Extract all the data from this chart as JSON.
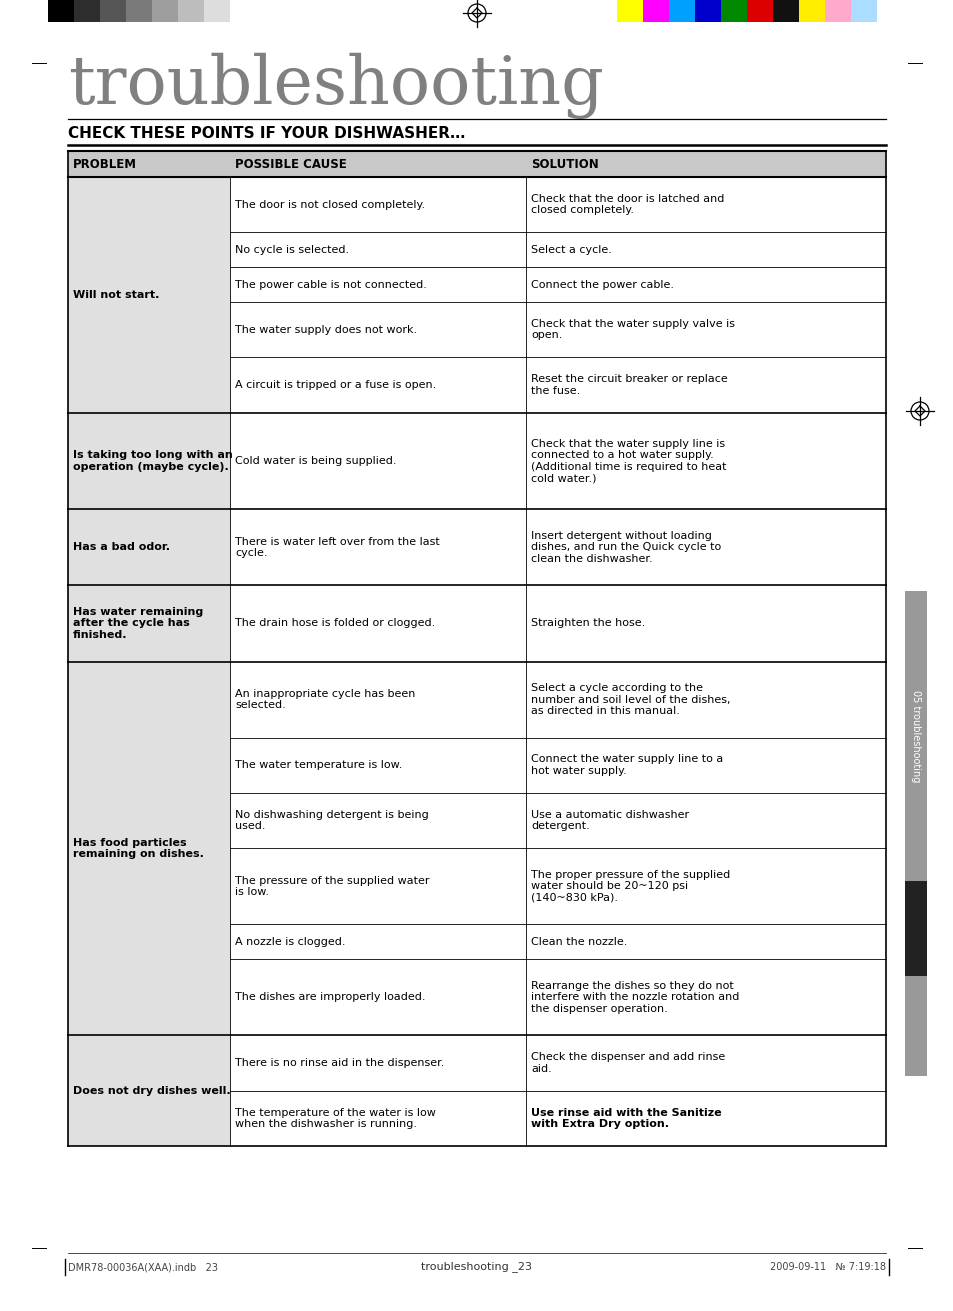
{
  "title": "troubleshooting",
  "section_title": "CHECK THESE POINTS IF YOUR DISHWASHER…",
  "bg_color": "#ffffff",
  "header_bg": "#c8c8c8",
  "problem_bg": "#e0e0e0",
  "table_headers": [
    "PROBLEM",
    "POSSIBLE CAUSE",
    "SOLUTION"
  ],
  "rows": [
    {
      "problem": "Will not start.",
      "problem_bold": true,
      "causes": [
        "The door is not closed completely.",
        "No cycle is selected.",
        "The power cable is not connected.",
        "The water supply does not work.",
        "A circuit is tripped or a fuse is open."
      ],
      "solutions": [
        "Check that the door is latched and\nclosed completely.",
        "Select a cycle.",
        "Connect the power cable.",
        "Check that the water supply valve is\nopen.",
        "Reset the circuit breaker or replace\nthe fuse."
      ],
      "sol_bold": [
        false,
        false,
        false,
        false,
        false
      ]
    },
    {
      "problem": "Is taking too long with an\noperation (maybe cycle).",
      "problem_bold": true,
      "causes": [
        "Cold water is being supplied."
      ],
      "solutions": [
        "Check that the water supply line is\nconnected to a hot water supply.\n(Additional time is required to heat\ncold water.)"
      ],
      "sol_bold": [
        false
      ]
    },
    {
      "problem": "Has a bad odor.",
      "problem_bold": true,
      "causes": [
        "There is water left over from the last\ncycle."
      ],
      "solutions": [
        "Insert detergent without loading\ndishes, and run the Quick cycle to\nclean the dishwasher."
      ],
      "sol_bold": [
        false
      ]
    },
    {
      "problem": "Has water remaining\nafter the cycle has\nfinished.",
      "problem_bold": true,
      "causes": [
        "The drain hose is folded or clogged."
      ],
      "solutions": [
        "Straighten the hose."
      ],
      "sol_bold": [
        false
      ]
    },
    {
      "problem": "Has food particles\nremaining on dishes.",
      "problem_bold": true,
      "causes": [
        "An inappropriate cycle has been\nselected.",
        "The water temperature is low.",
        "No dishwashing detergent is being\nused.",
        "The pressure of the supplied water\nis low.",
        "A nozzle is clogged.",
        "The dishes are improperly loaded."
      ],
      "solutions": [
        "Select a cycle according to the\nnumber and soil level of the dishes,\nas directed in this manual.",
        "Connect the water supply line to a\nhot water supply.",
        "Use a automatic dishwasher\ndetergent.",
        "The proper pressure of the supplied\nwater should be 20~120 psi\n(140~830 kPa).",
        "Clean the nozzle.",
        "Rearrange the dishes so they do not\ninterfere with the nozzle rotation and\nthe dispenser operation."
      ],
      "sol_bold": [
        false,
        false,
        false,
        false,
        false,
        false
      ]
    },
    {
      "problem": "Does not dry dishes well.",
      "problem_bold": true,
      "causes": [
        "There is no rinse aid in the dispenser.",
        "The temperature of the water is low\nwhen the dishwasher is running."
      ],
      "solutions": [
        "Check the dispenser and add rinse\naid.",
        "Use rinse aid with the Sanitize\nwith Extra Dry option."
      ],
      "sol_bold": [
        false,
        true
      ]
    }
  ],
  "side_label": "05 troubleshooting",
  "side_tab_gray": "#999999",
  "side_tab_dark": "#222222",
  "footer_left": "DMR78-00036A(XAA).indb   23",
  "footer_right": "2009-09-11   № 7:19:18",
  "footer_center": "troubleshooting _23",
  "bw_colors": [
    "#000000",
    "#2d2d2d",
    "#555555",
    "#7a7a7a",
    "#9e9e9e",
    "#bdbdbd",
    "#dddddd",
    "#ffffff"
  ],
  "color_bars": [
    "#ffff00",
    "#ff00ff",
    "#00a0ff",
    "#0000cc",
    "#008800",
    "#dd0000",
    "#111111",
    "#ffee00",
    "#ffaacc",
    "#aaddff"
  ]
}
